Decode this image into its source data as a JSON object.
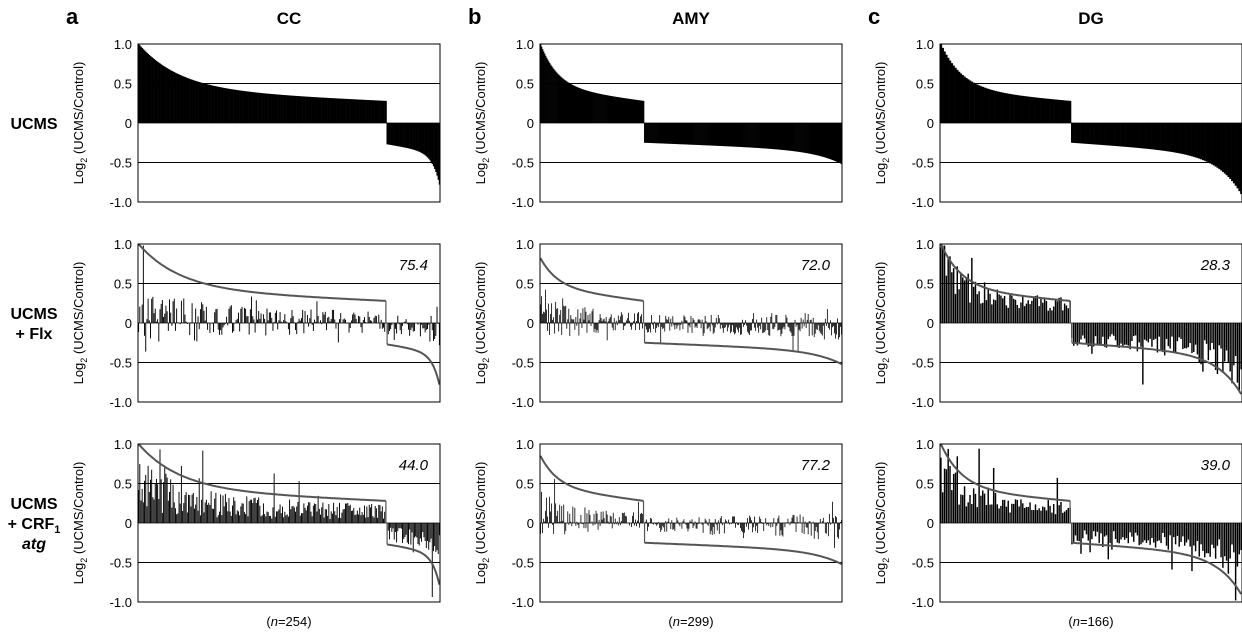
{
  "figure": {
    "panels": [
      {
        "letter": "a",
        "region": "CC",
        "n_prefix": "(",
        "n_italic": "n",
        "n_suffix": "=254)"
      },
      {
        "letter": "b",
        "region": "AMY",
        "n_prefix": "(",
        "n_italic": "n",
        "n_suffix": "=299)"
      },
      {
        "letter": "c",
        "region": "DG",
        "n_prefix": "(",
        "n_italic": "n",
        "n_suffix": "=166)"
      }
    ],
    "rows": [
      {
        "lines": [
          {
            "text": "UCMS"
          }
        ]
      },
      {
        "lines": [
          {
            "text": "UCMS"
          },
          {
            "text": "+ Flx"
          }
        ]
      },
      {
        "lines": [
          {
            "text": "UCMS"
          },
          {
            "text": "+ CRF",
            "sub": "1"
          },
          {
            "text": "atg",
            "italic": true
          }
        ]
      }
    ],
    "ylabel": {
      "prefix": "Log",
      "sub": "2",
      "rest": " (UCMS/Control)"
    },
    "colors": {
      "bars": "#000000",
      "reference_line": "#555555",
      "frame": "#000000",
      "gridline": "#000000"
    }
  },
  "chart_data": [
    {
      "type": "bar",
      "panel": "a",
      "row": 1,
      "treatment": "UCMS",
      "n": 254,
      "ylim": [
        -1.0,
        1.0
      ],
      "yticks": [
        "1.0",
        "0.5",
        "0",
        "-0.5",
        "-1.0"
      ],
      "gridlines": [
        0.5,
        -0.5
      ],
      "n_up": 209,
      "up": {
        "start": 1.0,
        "mid": 0.42,
        "end": 0.28
      },
      "down": {
        "start": -0.27,
        "mid": -0.38,
        "end": -0.78
      },
      "annotation": ""
    },
    {
      "type": "bar",
      "panel": "a",
      "row": 2,
      "treatment": "UCMS + Flx",
      "n": 254,
      "ylim": [
        -1.0,
        1.0
      ],
      "yticks": [
        "1.0",
        "0.5",
        "0",
        "-0.5",
        "-1.0"
      ],
      "gridlines": [
        0.5,
        -0.5
      ],
      "n_up": 209,
      "up": {
        "start": 1.0,
        "mid": 0.42,
        "end": 0.28
      },
      "down": {
        "start": -0.27,
        "mid": -0.38,
        "end": -0.78
      },
      "annotation": "75.4",
      "bars_mean_ratio": 0.25,
      "bars_spread": 0.28,
      "bars_mode": "mixed"
    },
    {
      "type": "bar",
      "panel": "a",
      "row": 3,
      "treatment": "UCMS + CRF1 atg",
      "n": 254,
      "ylim": [
        -1.0,
        1.0
      ],
      "yticks": [
        "1.0",
        "0.5",
        "0",
        "-0.5",
        "-1.0"
      ],
      "gridlines": [
        0.5,
        -0.5
      ],
      "n_up": 209,
      "up": {
        "start": 1.0,
        "mid": 0.42,
        "end": 0.28
      },
      "down": {
        "start": -0.27,
        "mid": -0.38,
        "end": -0.78
      },
      "annotation": "44.0",
      "bars_mean_ratio": 0.5,
      "bars_spread": 0.35,
      "bars_mode": "follow"
    },
    {
      "type": "bar",
      "panel": "b",
      "row": 1,
      "treatment": "UCMS",
      "n": 299,
      "ylim": [
        -1.0,
        1.0
      ],
      "yticks": [
        "1.0",
        "0.5",
        "0",
        "-0.5",
        "-1.0"
      ],
      "gridlines": [
        0.5,
        -0.5
      ],
      "n_up": 103,
      "up": {
        "start": 1.0,
        "mid": 0.45,
        "end": 0.28
      },
      "down": {
        "start": -0.25,
        "mid": -0.35,
        "end": -0.52
      },
      "annotation": ""
    },
    {
      "type": "bar",
      "panel": "b",
      "row": 2,
      "treatment": "UCMS + Flx",
      "n": 299,
      "ylim": [
        -1.0,
        1.0
      ],
      "yticks": [
        "1.0",
        "0.5",
        "0",
        "-0.5",
        "-1.0"
      ],
      "gridlines": [
        0.5,
        -0.5
      ],
      "n_up": 103,
      "up": {
        "start": 0.82,
        "mid": 0.45,
        "end": 0.28
      },
      "down": {
        "start": -0.25,
        "mid": -0.35,
        "end": -0.52
      },
      "annotation": "72.0",
      "bars_mean_ratio": 0.28,
      "bars_spread": 0.22,
      "bars_mode": "mixed"
    },
    {
      "type": "bar",
      "panel": "b",
      "row": 3,
      "treatment": "UCMS + CRF1 atg",
      "n": 299,
      "ylim": [
        -1.0,
        1.0
      ],
      "yticks": [
        "1.0",
        "0.5",
        "0",
        "-0.5",
        "-1.0"
      ],
      "gridlines": [
        0.5,
        -0.5
      ],
      "n_up": 103,
      "up": {
        "start": 0.85,
        "mid": 0.45,
        "end": 0.28
      },
      "down": {
        "start": -0.25,
        "mid": -0.35,
        "end": -0.52
      },
      "annotation": "77.2",
      "bars_mean_ratio": 0.22,
      "bars_spread": 0.28,
      "bars_mode": "reversed"
    },
    {
      "type": "bar",
      "panel": "c",
      "row": 1,
      "treatment": "UCMS",
      "n": 166,
      "ylim": [
        -1.0,
        1.0
      ],
      "yticks": [
        "1.0",
        "0.5",
        "0",
        "-0.5",
        "-1.0"
      ],
      "gridlines": [
        0.5,
        -0.5
      ],
      "n_up": 72,
      "up": {
        "start": 1.0,
        "mid": 0.42,
        "end": 0.28
      },
      "down": {
        "start": -0.25,
        "mid": -0.4,
        "end": -0.9
      },
      "annotation": ""
    },
    {
      "type": "bar",
      "panel": "c",
      "row": 2,
      "treatment": "UCMS + Flx",
      "n": 166,
      "ylim": [
        -1.0,
        1.0
      ],
      "yticks": [
        "1.0",
        "0.5",
        "0",
        "-0.5",
        "-1.0"
      ],
      "gridlines": [
        0.5,
        -0.5
      ],
      "n_up": 72,
      "up": {
        "start": 1.0,
        "mid": 0.42,
        "end": 0.28
      },
      "down": {
        "start": -0.25,
        "mid": -0.4,
        "end": -0.9
      },
      "annotation": "28.3",
      "bars_mean_ratio": 0.8,
      "bars_spread": 0.35,
      "bars_mode": "follow"
    },
    {
      "type": "bar",
      "panel": "c",
      "row": 3,
      "treatment": "UCMS + CRF1 atg",
      "n": 166,
      "ylim": [
        -1.0,
        1.0
      ],
      "yticks": [
        "1.0",
        "0.5",
        "0",
        "-0.5",
        "-1.0"
      ],
      "gridlines": [
        0.5,
        -0.5
      ],
      "n_up": 72,
      "up": {
        "start": 1.0,
        "mid": 0.42,
        "end": 0.28
      },
      "down": {
        "start": -0.25,
        "mid": -0.4,
        "end": -0.9
      },
      "annotation": "39.0",
      "bars_mean_ratio": 0.65,
      "bars_spread": 0.3,
      "bars_mode": "follow"
    }
  ]
}
